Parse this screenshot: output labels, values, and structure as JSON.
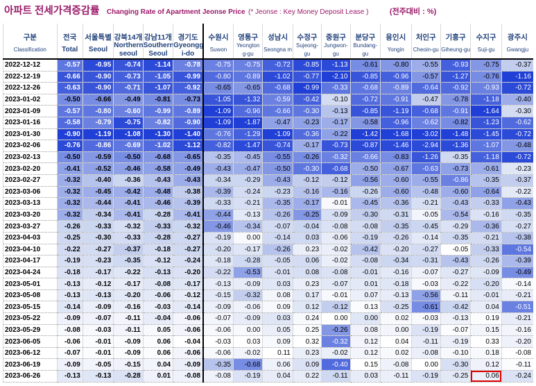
{
  "title": {
    "korean": "아파트 전세가격증감률",
    "english": "Changing Rate of Apartment Jeonse Price",
    "note": "(* Jeonse : Key Money Deposit Lease )",
    "unit": "(전주대비 : %)"
  },
  "chart_data": {
    "type": "table",
    "columns": [
      {
        "ko": "구분",
        "en": "Classification"
      },
      {
        "ko": "전국",
        "en": "Total"
      },
      {
        "ko": "서울특별시",
        "en": "Seoul"
      },
      {
        "ko": "강북14개구",
        "en": "Northern seoul"
      },
      {
        "ko": "강남11개구",
        "en": "Southern Seoul"
      },
      {
        "ko": "경기도",
        "en": "Gyeonggi-do"
      },
      {
        "ko": "수원시",
        "en": "Suwon"
      },
      {
        "ko": "영통구",
        "en": "Yeongtong-gu"
      },
      {
        "ko": "성남시",
        "en": "Seongnam"
      },
      {
        "ko": "수정구",
        "en": "Sujeong-gu"
      },
      {
        "ko": "중원구",
        "en": "Jungwon-gu"
      },
      {
        "ko": "분당구",
        "en": "Bundang-gu"
      },
      {
        "ko": "용인시",
        "en": "Yongin"
      },
      {
        "ko": "처인구",
        "en": "Cheoin-gu"
      },
      {
        "ko": "기흥구",
        "en": "Giheung-gu"
      },
      {
        "ko": "수지구",
        "en": "Suji-gu"
      },
      {
        "ko": "광주시",
        "en": "Gwangju"
      }
    ],
    "header_ko_display": [
      "구분",
      "전국",
      "서울특별",
      "강북14개",
      "강남11개",
      "경기도",
      "수원시",
      "영통구",
      "성남시",
      "수정구",
      "중원구",
      "분당구",
      "용인시",
      "처인구",
      "기흥구",
      "수지구",
      "광주시"
    ],
    "header_en_display": [
      "Classification",
      "Total",
      "Seoul",
      "Northern seoul",
      "Southern Seoul",
      "Gyeongg i-do",
      "Suwon",
      "Yeongton g-gu",
      "Seongna m",
      "Sujeong-gu",
      "Jungwon-gu",
      "Bundang-gu",
      "Yongin",
      "Cheoin-gu",
      "Giheung-gu",
      "Suji-gu",
      "Gwangju"
    ],
    "rows": [
      {
        "date": "2022-12-12",
        "values": [
          -0.57,
          -0.95,
          -0.74,
          -1.14,
          -0.78,
          -0.75,
          -0.75,
          -0.72,
          -0.85,
          -1.13,
          -0.61,
          -0.8,
          -0.55,
          -0.93,
          -0.75,
          -0.37
        ]
      },
      {
        "date": "2022-12-19",
        "values": [
          -0.66,
          -0.9,
          -0.73,
          -1.05,
          -0.99,
          -0.8,
          -0.89,
          -1.02,
          -0.77,
          -2.1,
          -0.85,
          -0.96,
          -0.57,
          -1.27,
          -0.76,
          -1.16
        ]
      },
      {
        "date": "2022-12-26",
        "values": [
          -0.63,
          -0.9,
          -0.71,
          -1.07,
          -0.92,
          -0.65,
          -0.65,
          -0.68,
          -0.99,
          -0.33,
          -0.68,
          -0.89,
          -0.64,
          -0.92,
          -0.93,
          -0.72
        ]
      },
      {
        "date": "2023-01-02",
        "values": [
          -0.5,
          -0.66,
          -0.49,
          -0.81,
          -0.73,
          -1.05,
          -1.32,
          -0.59,
          -0.42,
          -0.1,
          -0.72,
          -0.91,
          -0.47,
          -0.78,
          -1.18,
          -0.4
        ]
      },
      {
        "date": "2023-01-09",
        "values": [
          -0.57,
          -0.8,
          -0.6,
          -0.99,
          -0.89,
          -1.09,
          -0.96,
          -0.66,
          -0.3,
          -0.13,
          -0.85,
          -1.19,
          -0.68,
          -0.91,
          -1.64,
          -0.3
        ]
      },
      {
        "date": "2023-01-16",
        "values": [
          -0.58,
          -0.79,
          -0.75,
          -0.82,
          -0.9,
          -1.09,
          -1.87,
          -0.47,
          -0.23,
          -0.17,
          -0.58,
          -0.96,
          -0.62,
          -0.82,
          -1.23,
          -0.62
        ]
      },
      {
        "date": "2023-01-30",
        "values": [
          -0.9,
          -1.19,
          -1.08,
          -1.3,
          -1.4,
          -0.76,
          -1.29,
          -1.09,
          -0.36,
          -0.22,
          -1.42,
          -1.68,
          -3.02,
          -1.48,
          -1.45,
          -0.72
        ]
      },
      {
        "date": "2023-02-06",
        "values": [
          -0.76,
          -0.86,
          -0.69,
          -1.02,
          -1.12,
          -0.82,
          -1.47,
          -0.74,
          -0.17,
          -0.73,
          -0.87,
          -1.46,
          -2.94,
          -1.36,
          -1.07,
          -0.48
        ]
      },
      {
        "date": "2023-02-13",
        "values": [
          -0.5,
          -0.59,
          -0.5,
          -0.68,
          -0.65,
          -0.35,
          -0.45,
          -0.55,
          -0.26,
          -0.32,
          -0.66,
          -0.83,
          -1.26,
          -0.35,
          -1.18,
          -0.72
        ]
      },
      {
        "date": "2023-02-20",
        "values": [
          -0.41,
          -0.52,
          -0.46,
          -0.58,
          -0.49,
          -0.43,
          -0.47,
          -0.5,
          -0.3,
          -0.68,
          -0.5,
          -0.67,
          -0.63,
          -0.73,
          -0.61,
          -0.23
        ]
      },
      {
        "date": "2023-02-27",
        "values": [
          -0.32,
          -0.4,
          -0.36,
          -0.43,
          -0.43,
          -0.34,
          -0.29,
          -0.43,
          -0.12,
          -0.12,
          -0.56,
          -0.6,
          -0.55,
          -0.86,
          -0.35,
          -0.37
        ]
      },
      {
        "date": "2023-03-06",
        "values": [
          -0.32,
          -0.45,
          -0.42,
          -0.48,
          -0.38,
          -0.39,
          -0.24,
          -0.23,
          -0.16,
          -0.16,
          -0.26,
          -0.6,
          -0.48,
          -0.6,
          -0.64,
          -0.22
        ]
      },
      {
        "date": "2023-03-13",
        "values": [
          -0.32,
          -0.44,
          -0.41,
          -0.46,
          -0.39,
          -0.33,
          -0.21,
          -0.35,
          -0.17,
          -0.01,
          -0.45,
          -0.36,
          -0.21,
          -0.43,
          -0.33,
          -0.43
        ]
      },
      {
        "date": "2023-03-20",
        "values": [
          -0.32,
          -0.34,
          -0.41,
          -0.28,
          -0.41,
          -0.44,
          -0.13,
          -0.26,
          -0.25,
          -0.09,
          -0.3,
          -0.31,
          -0.05,
          -0.54,
          -0.16,
          -0.35
        ]
      },
      {
        "date": "2023-03-27",
        "values": [
          -0.26,
          -0.33,
          -0.32,
          -0.33,
          -0.32,
          -0.46,
          -0.34,
          -0.07,
          -0.04,
          -0.08,
          -0.08,
          -0.35,
          -0.45,
          -0.29,
          -0.36,
          -0.27
        ]
      },
      {
        "date": "2023-04-03",
        "values": [
          -0.25,
          -0.3,
          -0.33,
          -0.28,
          -0.27,
          -0.19,
          0.0,
          -0.14,
          0.03,
          -0.06,
          -0.19,
          -0.26,
          -0.14,
          -0.35,
          -0.21,
          -0.38
        ]
      },
      {
        "date": "2023-04-10",
        "values": [
          -0.22,
          -0.27,
          -0.37,
          -0.18,
          -0.27,
          -0.2,
          -0.17,
          -0.26,
          0.23,
          -0.02,
          -0.42,
          -0.2,
          -0.27,
          -0.05,
          -0.33,
          -0.54
        ]
      },
      {
        "date": "2023-04-17",
        "values": [
          -0.19,
          -0.23,
          -0.35,
          -0.12,
          -0.24,
          -0.18,
          -0.28,
          -0.05,
          0.06,
          -0.02,
          -0.08,
          -0.34,
          -0.31,
          -0.43,
          -0.26,
          -0.39
        ]
      },
      {
        "date": "2023-04-24",
        "values": [
          -0.18,
          -0.17,
          -0.22,
          -0.13,
          -0.2,
          -0.22,
          -0.53,
          -0.01,
          0.08,
          -0.08,
          -0.01,
          -0.16,
          -0.07,
          -0.27,
          -0.09,
          -0.49
        ]
      },
      {
        "date": "2023-05-01",
        "values": [
          -0.13,
          -0.12,
          -0.17,
          -0.08,
          -0.17,
          -0.13,
          -0.09,
          0.03,
          0.23,
          -0.07,
          0.01,
          -0.18,
          -0.03,
          -0.22,
          -0.2,
          -0.14
        ]
      },
      {
        "date": "2023-05-08",
        "values": [
          -0.13,
          -0.13,
          -0.2,
          -0.06,
          -0.12,
          -0.15,
          -0.32,
          0.08,
          0.17,
          -0.01,
          0.07,
          -0.13,
          -0.56,
          -0.11,
          -0.01,
          -0.21
        ]
      },
      {
        "date": "2023-05-15",
        "values": [
          -0.14,
          -0.09,
          -0.16,
          -0.03,
          -0.14,
          -0.09,
          -0.06,
          0.09,
          0.12,
          -0.12,
          0.13,
          -0.25,
          -0.61,
          -0.42,
          0.04,
          -0.51
        ]
      },
      {
        "date": "2023-05-22",
        "values": [
          -0.09,
          -0.07,
          -0.11,
          -0.04,
          -0.06,
          -0.07,
          -0.09,
          0.03,
          0.24,
          0.0,
          0.0,
          0.02,
          -0.03,
          -0.13,
          0.19,
          -0.21
        ]
      },
      {
        "date": "2023-05-29",
        "values": [
          -0.08,
          -0.03,
          -0.11,
          0.05,
          -0.06,
          -0.06,
          0.0,
          0.05,
          0.25,
          -0.26,
          0.08,
          0.0,
          -0.19,
          -0.07,
          0.15,
          -0.16
        ]
      },
      {
        "date": "2023-06-05",
        "values": [
          -0.06,
          -0.01,
          -0.09,
          0.06,
          -0.04,
          -0.03,
          0.03,
          0.09,
          0.32,
          -0.32,
          0.12,
          0.04,
          -0.11,
          -0.19,
          0.33,
          -0.2
        ]
      },
      {
        "date": "2023-06-12",
        "values": [
          -0.07,
          -0.01,
          -0.09,
          0.06,
          -0.06,
          -0.06,
          -0.02,
          0.11,
          0.23,
          -0.02,
          0.12,
          0.02,
          -0.08,
          -0.1,
          0.18,
          -0.08
        ]
      },
      {
        "date": "2023-06-19",
        "values": [
          -0.09,
          -0.05,
          -0.15,
          0.04,
          -0.09,
          -0.35,
          -0.68,
          0.06,
          0.09,
          -0.4,
          0.15,
          -0.08,
          0.0,
          -0.3,
          0.12,
          -0.11
        ]
      },
      {
        "date": "2023-06-26",
        "values": [
          -0.13,
          -0.13,
          -0.28,
          0.01,
          -0.08,
          -0.08,
          -0.19,
          0.04,
          0.22,
          -0.11,
          0.03,
          -0.11,
          -0.19,
          -0.25,
          0.06,
          -0.24
        ]
      }
    ],
    "color_scale": {
      "low": "#1f3fd6",
      "mid": "#c9d4f0",
      "high": "#ffffff"
    },
    "highlighted_cell": {
      "row": "2023-06-26",
      "column": "Suji-gu"
    },
    "highlight_color": "#e00000"
  }
}
